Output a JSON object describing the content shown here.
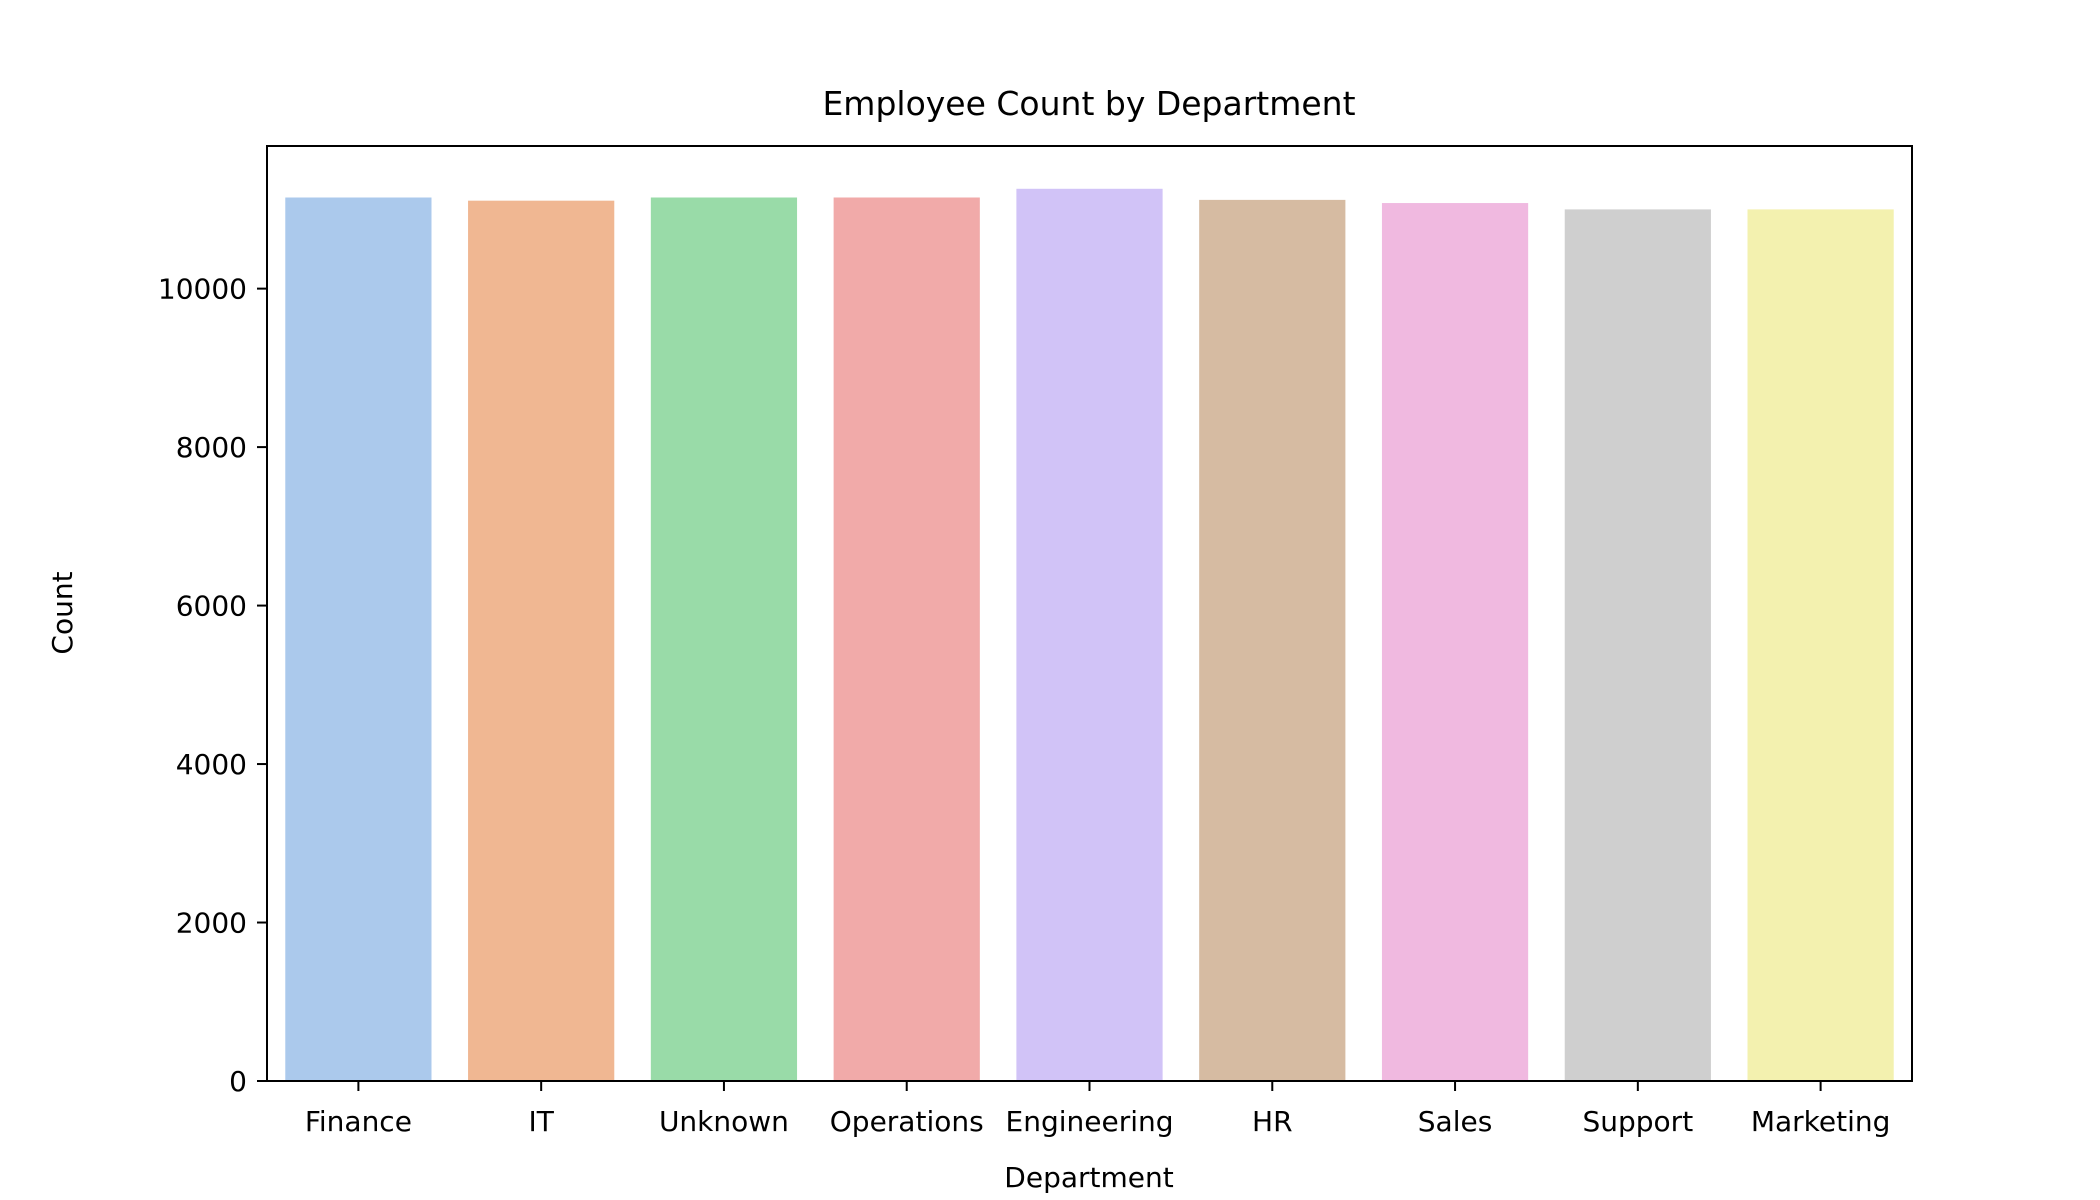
{
  "chart_data": {
    "type": "bar",
    "title": "Employee Count by Department",
    "xlabel": "Department",
    "ylabel": "Count",
    "categories": [
      "Finance",
      "IT",
      "Unknown",
      "Operations",
      "Engineering",
      "HR",
      "Sales",
      "Support",
      "Marketing"
    ],
    "values": [
      11150,
      11110,
      11150,
      11150,
      11260,
      11120,
      11080,
      11000,
      11000
    ],
    "colors": [
      "#abc9ec",
      "#f0b792",
      "#99dba8",
      "#f1aaa9",
      "#d1c3f7",
      "#d6bba2",
      "#f0b9e0",
      "#cfcfcf",
      "#f3f1af"
    ],
    "ylim": [
      0,
      11800
    ],
    "yticks": [
      0,
      2000,
      4000,
      6000,
      8000,
      10000
    ],
    "ytick_labels": [
      "0",
      "2000",
      "4000",
      "6000",
      "8000",
      "10000"
    ],
    "grid": false,
    "legend": "none"
  }
}
